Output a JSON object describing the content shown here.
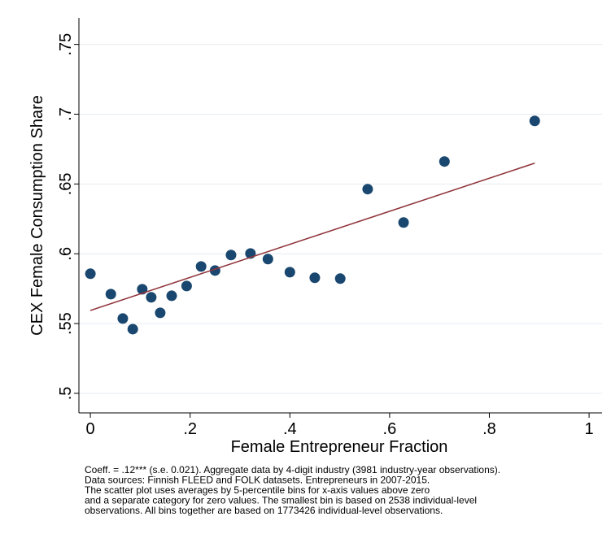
{
  "chart_data": {
    "type": "scatter",
    "xlabel": "Female Entrepreneur Fraction",
    "ylabel": "CEX Female Consumption Share",
    "x": [
      0,
      0.041,
      0.065,
      0.085,
      0.104,
      0.122,
      0.14,
      0.163,
      0.193,
      0.222,
      0.25,
      0.282,
      0.321,
      0.356,
      0.4,
      0.45,
      0.501,
      0.556,
      0.628,
      0.71,
      0.891
    ],
    "values": [
      0.5857,
      0.5711,
      0.5536,
      0.546,
      0.5746,
      0.5688,
      0.5577,
      0.5699,
      0.5769,
      0.5909,
      0.588,
      0.5991,
      0.6002,
      0.5962,
      0.5868,
      0.5828,
      0.5822,
      0.6463,
      0.6224,
      0.6661,
      0.6952
    ],
    "color": "#1a476f",
    "fit": {
      "x": [
        0,
        0.891
      ],
      "y": [
        0.5594,
        0.6649
      ],
      "color": "#90353b"
    },
    "xlim": [
      -0.023,
      1.026
    ],
    "ylim": [
      0.486,
      0.769
    ],
    "xticks": [
      0,
      {
        "value": 0.2,
        "label": ".2"
      },
      {
        "value": 0.4,
        "label": ".4"
      },
      {
        "value": 0.6,
        "label": ".6"
      },
      {
        "value": 0.8,
        "label": ".8"
      },
      1
    ],
    "yticks": [
      {
        "value": 0.5,
        "label": ".5"
      },
      {
        "value": 0.55,
        "label": ".55"
      },
      {
        "value": 0.6,
        "label": ".6"
      },
      {
        "value": 0.65,
        "label": ".65"
      },
      {
        "value": 0.7,
        "label": ".7"
      },
      {
        "value": 0.75,
        "label": ".75"
      }
    ],
    "grid": true,
    "notes": [
      "Coeff. = .12*** (s.e. 0.021).  Aggregate data by 4-digit industry (3981 industry-year observations).",
      "Data sources: Finnish FLEED and FOLK datasets. Entrepreneurs in 2007-2015.",
      "The scatter plot uses averages by 5-percentile bins for x-axis values above zero",
      "and a separate category for zero values. The smallest bin is based on 2538 individual-level",
      "observations. All bins together are based on 1773426 individual-level observations."
    ]
  }
}
